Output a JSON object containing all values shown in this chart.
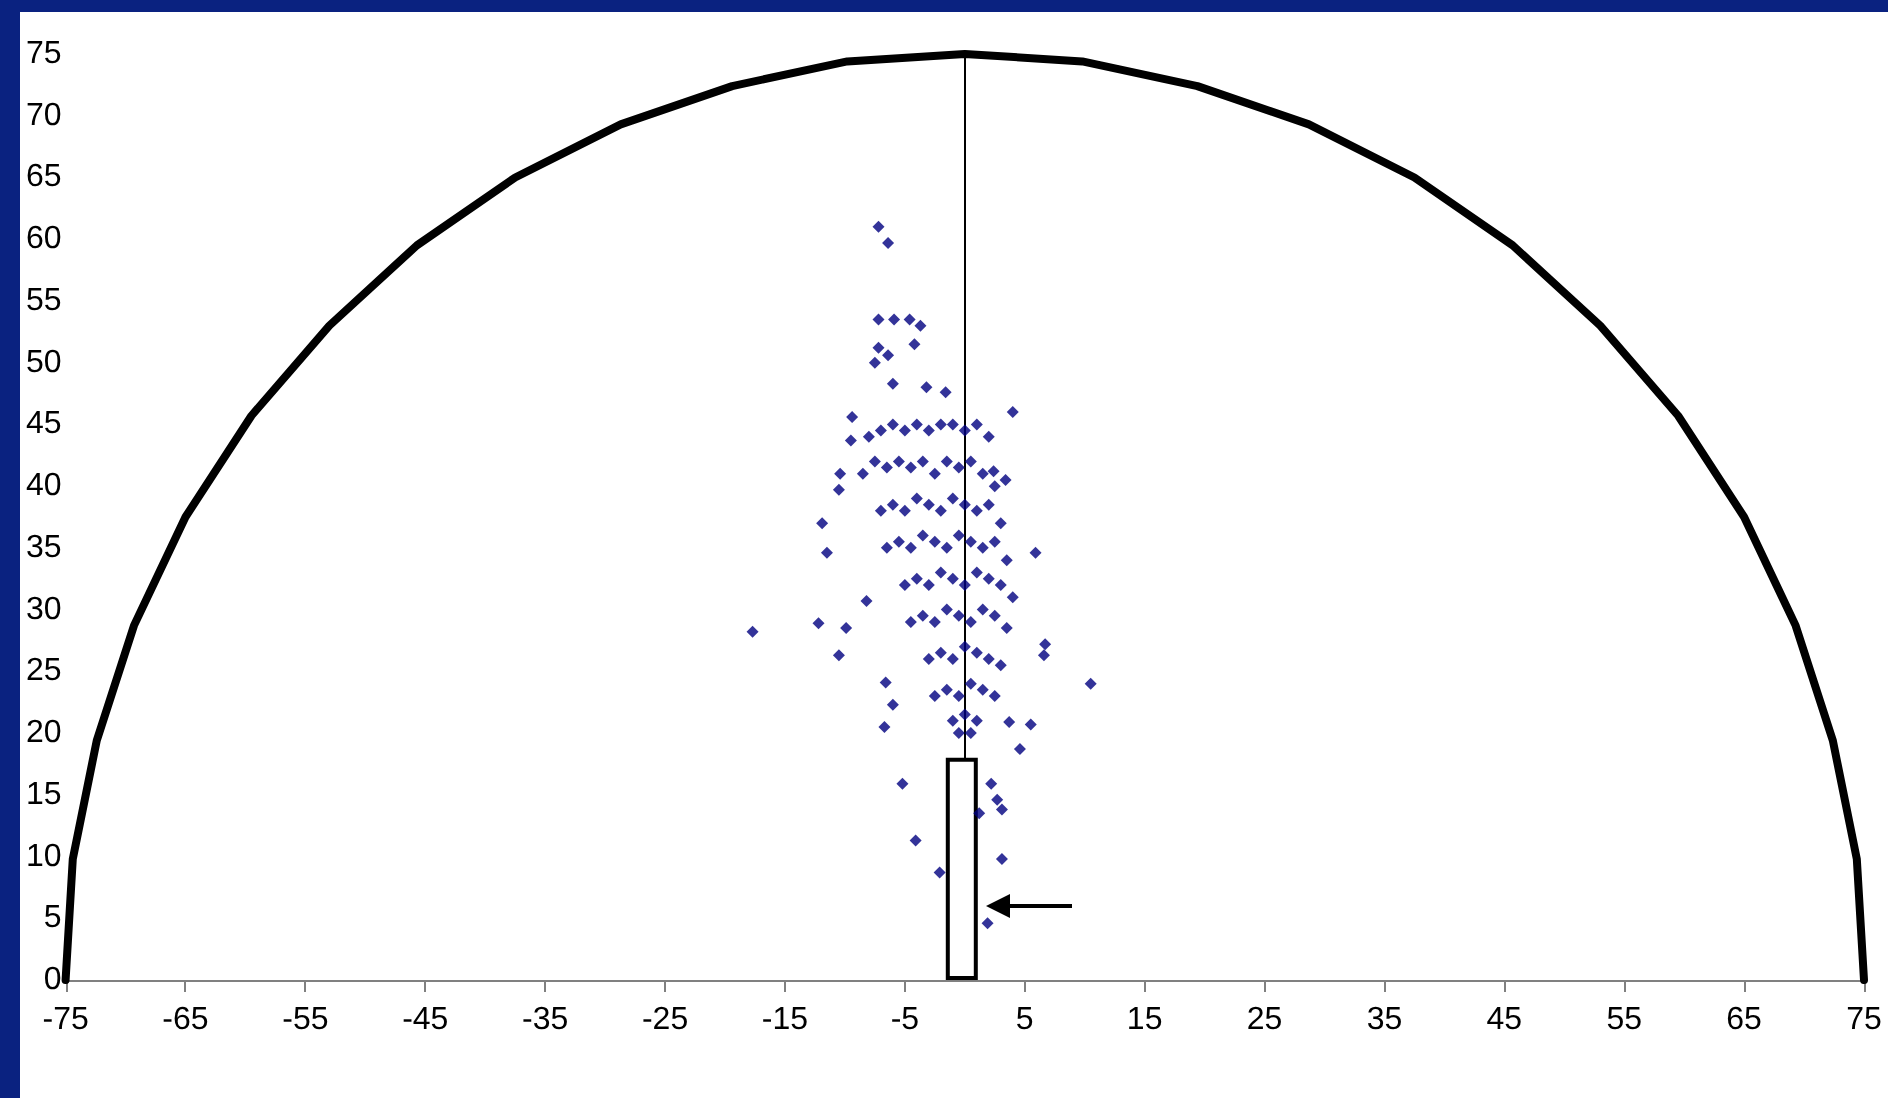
{
  "chart_data": {
    "type": "scatter",
    "xlim": [
      -75,
      75
    ],
    "xticks": [
      -75,
      -65,
      -55,
      -45,
      -35,
      -25,
      -15,
      -5,
      5,
      15,
      25,
      35,
      45,
      55,
      65,
      75
    ],
    "ylim": [
      0,
      75
    ],
    "yticks": [
      0,
      5,
      10,
      15,
      20,
      25,
      30,
      35,
      40,
      45,
      50,
      55,
      60,
      65,
      70,
      75
    ],
    "grid": false,
    "marker": "diamond",
    "series": [
      {
        "color": "#000080",
        "x": [
          -7.2,
          -6.4,
          -7.2,
          -5.9,
          -4.6,
          -3.7,
          -7.2,
          -6.4,
          -7.5,
          -4.2,
          -6,
          -3.2,
          -1.6,
          -9.4,
          4,
          -9.5,
          -10.4,
          -10.5,
          -11.9,
          3.4,
          2.4,
          -17.7,
          -12.2,
          -9.9,
          -10.5,
          10.5,
          5.9,
          6.7,
          6.6,
          5.5,
          3.7,
          2.7,
          3.1,
          1.9,
          -2.1,
          -4.1,
          -5.2,
          -6.7,
          -6,
          -6.6,
          -11.5,
          -8.2,
          4.6,
          3.1,
          2.2,
          1.2,
          -8,
          -7,
          -6,
          -5,
          -4,
          -3,
          -2,
          -1,
          0,
          1,
          2,
          -8.5,
          -7.5,
          -6.5,
          -5.5,
          -4.5,
          -3.5,
          -2.5,
          -1.5,
          -0.5,
          0.5,
          1.5,
          2.5,
          -7,
          -6,
          -5,
          -4,
          -3,
          -2,
          -1,
          0,
          1,
          2,
          3,
          -6.5,
          -5.5,
          -4.5,
          -3.5,
          -2.5,
          -1.5,
          -0.5,
          0.5,
          1.5,
          2.5,
          3.5,
          -5,
          -4,
          -3,
          -2,
          -1,
          0,
          1,
          2,
          3,
          4,
          -4.5,
          -3.5,
          -2.5,
          -1.5,
          -0.5,
          0.5,
          1.5,
          2.5,
          3.5,
          -3,
          -2,
          -1,
          0,
          1,
          2,
          3,
          -2.5,
          -1.5,
          -0.5,
          0.5,
          1.5,
          2.5,
          -1,
          0,
          1,
          -0.5,
          0.5
        ],
        "values": [
          61,
          59.7,
          53.5,
          53.5,
          53.5,
          53,
          51.2,
          50.6,
          50,
          51.5,
          48.3,
          48,
          47.6,
          45.6,
          46,
          43.7,
          41,
          39.7,
          37,
          40.5,
          41.2,
          28.2,
          28.9,
          28.5,
          26.3,
          24,
          34.6,
          27.2,
          26.3,
          20.7,
          20.9,
          14.6,
          9.8,
          4.6,
          8.7,
          11.3,
          15.9,
          20.5,
          22.3,
          24.1,
          34.6,
          30.7,
          18.7,
          13.8,
          15.9,
          13.5,
          44,
          44.5,
          45,
          44.5,
          45,
          44.5,
          45,
          45,
          44.5,
          45,
          44,
          41,
          42,
          41.5,
          42,
          41.5,
          42,
          41,
          42,
          41.5,
          42,
          41,
          40,
          38,
          38.5,
          38,
          39,
          38.5,
          38,
          39,
          38.5,
          38,
          38.5,
          37,
          35,
          35.5,
          35,
          36,
          35.5,
          35,
          36,
          35.5,
          35,
          35.5,
          34,
          32,
          32.5,
          32,
          33,
          32.5,
          32,
          33,
          32.5,
          32,
          31,
          29,
          29.5,
          29,
          30,
          29.5,
          29,
          30,
          29.5,
          28.5,
          26,
          26.5,
          26,
          27,
          26.5,
          26,
          25.5,
          23,
          23.5,
          23,
          24,
          23.5,
          23,
          21,
          21.5,
          21,
          20,
          20
        ]
      },
      {
        "type": "line",
        "color": "#000000",
        "marker": "none",
        "x": [
          75,
          74.4,
          72.4,
          69.3,
          65,
          59.5,
          53,
          45.7,
          37.5,
          28.7,
          19.4,
          9.8,
          0,
          -9.8,
          -19.4,
          -28.7,
          -37.5,
          -45.7,
          -53,
          -59.5,
          -65,
          -69.3,
          -72.4,
          -74.4,
          -75
        ],
        "values": [
          0,
          9.8,
          19.4,
          28.7,
          37.5,
          45.7,
          53,
          59.5,
          65,
          69.3,
          72.4,
          74.4,
          75,
          74.4,
          72.4,
          69.3,
          65,
          59.5,
          53,
          45.7,
          37.5,
          28.7,
          19.4,
          9.8,
          0
        ]
      },
      {
        "type": "bar",
        "color": "#ffffff",
        "x": [
          -0.25
        ],
        "values": [
          18
        ]
      }
    ]
  }
}
